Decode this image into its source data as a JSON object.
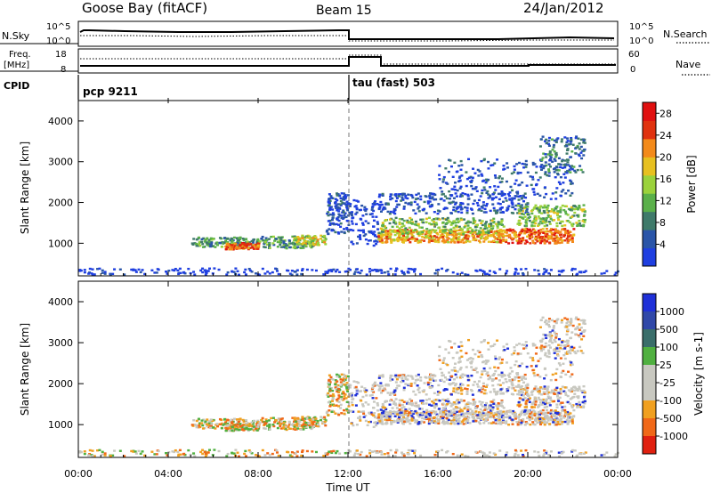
{
  "header": {
    "station": "Goose Bay (fitACF)",
    "beam": "Beam 15",
    "date": "24/Jan/2012"
  },
  "panels": {
    "nsky_label": "N.Sky",
    "nsky_ticks": [
      "10^5",
      "10^0"
    ],
    "nsearch_label": "N.Search",
    "nsearch_ticks": [
      "10^5",
      "10^0"
    ],
    "freq_label_1": "Freq.",
    "freq_label_2": "[MHz]",
    "freq_ticks": [
      "18",
      "8"
    ],
    "nave_label": "Nave",
    "nave_ticks": [
      "60",
      "0"
    ],
    "cpid_label": "CPID",
    "cpid_modes": [
      "pcp 9211",
      "tau (fast) 503"
    ]
  },
  "colors": {
    "power": [
      "#1f3fe0",
      "#2a55a8",
      "#3f7a6a",
      "#5ab04a",
      "#9bd23c",
      "#e7c020",
      "#f38a1a",
      "#e0320f",
      "#e01010"
    ],
    "velocity": [
      "#1f30d8",
      "#3048a8",
      "#3a6e6a",
      "#50b040",
      "#c8c8c0",
      "#c8c8c0",
      "#f0a020",
      "#f06818",
      "#e02010"
    ]
  },
  "chart_data": [
    {
      "type": "heatmap",
      "quantity": "Power",
      "ylabel": "Slant Range [km]",
      "yticks": [
        "1000",
        "2000",
        "3000",
        "4000"
      ],
      "ylim": [
        200,
        4500
      ],
      "colorbar_label": "Power [dB]",
      "colorbar_ticks": [
        "4",
        "8",
        "12",
        "16",
        "20",
        "24",
        "28"
      ],
      "colorbar_range": [
        0,
        30
      ],
      "mode_change_time": "12:00"
    },
    {
      "type": "heatmap",
      "quantity": "Velocity",
      "ylabel": "Slant Range [km]",
      "yticks": [
        "1000",
        "2000",
        "3000",
        "4000"
      ],
      "ylim": [
        200,
        4500
      ],
      "colorbar_label": "Velocity [m s-1]",
      "colorbar_ticks": [
        "1000",
        "500",
        "100",
        "25",
        "-25",
        "-100",
        "-500",
        "-1000"
      ]
    }
  ],
  "x_axis": {
    "label": "Time UT",
    "ticks": [
      "00:00",
      "04:00",
      "08:00",
      "12:00",
      "16:00",
      "20:00",
      "00:00"
    ],
    "range_hours": [
      0,
      24
    ]
  }
}
